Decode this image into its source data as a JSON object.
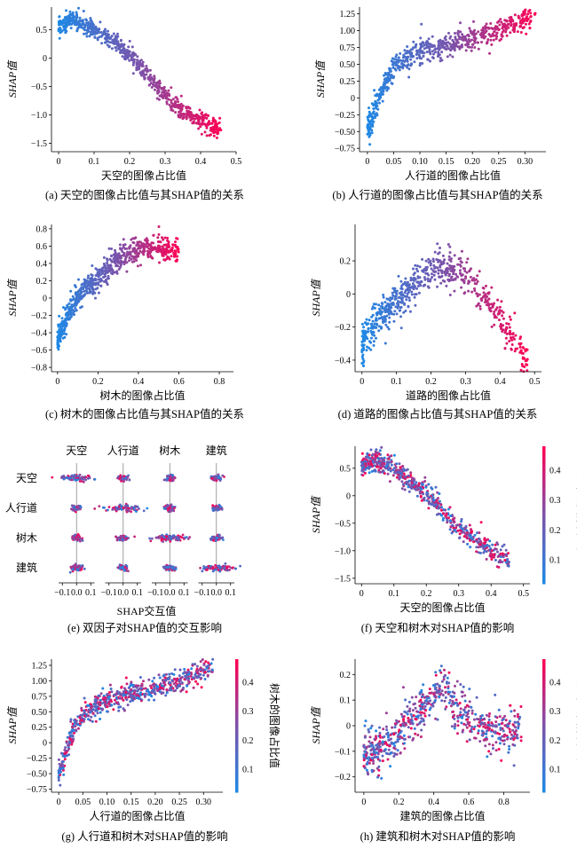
{
  "chart_data": [
    {
      "id": "a",
      "type": "scatter",
      "caption": "(a) 天空的图像占比值与其SHAP值的关系",
      "xlabel": "天空的图像占比值",
      "ylabel": "SHAP值",
      "xlim": [
        -0.02,
        0.5
      ],
      "ylim": [
        -1.65,
        0.9
      ],
      "xticks": [
        0,
        0.1,
        0.2,
        0.3,
        0.4,
        0.5
      ],
      "xticklabels": [
        "0",
        "0.1",
        "0.2",
        "0.3",
        "0.4",
        "0.5"
      ],
      "yticks": [
        0.5,
        0,
        -0.5,
        -1.0,
        -1.5
      ],
      "yticklabels": [
        "0.5",
        "0",
        "−0.5",
        "−1.0",
        "−1.5"
      ],
      "curve": [
        [
          0,
          0.55
        ],
        [
          0.04,
          0.7
        ],
        [
          0.08,
          0.55
        ],
        [
          0.12,
          0.45
        ],
        [
          0.2,
          0.05
        ],
        [
          0.25,
          -0.3
        ],
        [
          0.3,
          -0.65
        ],
        [
          0.35,
          -0.95
        ],
        [
          0.4,
          -1.1
        ],
        [
          0.45,
          -1.25
        ]
      ],
      "x_range": [
        0,
        0.46
      ],
      "spread": 0.09,
      "count": 700,
      "color_by": "x",
      "colorbar": null
    },
    {
      "id": "b",
      "type": "scatter",
      "caption": "(b) 人行道的图像占比值与其SHAP值的关系",
      "xlabel": "人行道的图像占比值",
      "ylabel": "SHAP值",
      "xlim": [
        -0.015,
        0.34
      ],
      "ylim": [
        -0.8,
        1.35
      ],
      "xticks": [
        0,
        0.05,
        0.1,
        0.15,
        0.2,
        0.25,
        0.3
      ],
      "xticklabels": [
        "0",
        "0.05",
        "0.10",
        "0.15",
        "0.20",
        "0.25",
        "0.30"
      ],
      "yticks": [
        1.25,
        1.0,
        0.75,
        0.5,
        0.25,
        0,
        -0.25,
        -0.5,
        -0.75
      ],
      "yticklabels": [
        "1.25",
        "1.00",
        "0.75",
        "0.50",
        "0.25",
        "0",
        "−0.25",
        "−0.50",
        "−0.75"
      ],
      "curve": [
        [
          0,
          -0.5
        ],
        [
          0.01,
          -0.3
        ],
        [
          0.02,
          -0.05
        ],
        [
          0.035,
          0.25
        ],
        [
          0.05,
          0.45
        ],
        [
          0.07,
          0.58
        ],
        [
          0.1,
          0.7
        ],
        [
          0.13,
          0.75
        ],
        [
          0.18,
          0.85
        ],
        [
          0.25,
          1.0
        ],
        [
          0.32,
          1.25
        ]
      ],
      "x_range": [
        0,
        0.32
      ],
      "spread": 0.1,
      "count": 650,
      "color_by": "x",
      "colorbar": null
    },
    {
      "id": "c",
      "type": "scatter",
      "caption": "(c) 树木的图像占比值与其SHAP值的关系",
      "xlabel": "树木的图像占比值",
      "ylabel": "SHAP值",
      "xlim": [
        -0.03,
        0.87
      ],
      "ylim": [
        -0.85,
        0.85
      ],
      "xticks": [
        0,
        0.2,
        0.4,
        0.6,
        0.8
      ],
      "xticklabels": [
        "0",
        "0.2",
        "0.4",
        "0.6",
        "0.8"
      ],
      "yticks": [
        0.8,
        0.6,
        0.4,
        0.2,
        0,
        -0.2,
        -0.4,
        -0.6,
        -0.8
      ],
      "yticklabels": [
        "0.8",
        "0.6",
        "0.4",
        "0.2",
        "0",
        "−0.2",
        "−0.4",
        "−0.6",
        "−0.8"
      ],
      "curve": [
        [
          0,
          -0.5
        ],
        [
          0.05,
          -0.2
        ],
        [
          0.1,
          0
        ],
        [
          0.2,
          0.25
        ],
        [
          0.3,
          0.45
        ],
        [
          0.4,
          0.57
        ],
        [
          0.5,
          0.58
        ],
        [
          0.6,
          0.52
        ],
        [
          0.8,
          0.65
        ]
      ],
      "x_range": [
        0,
        0.6
      ],
      "spread": 0.08,
      "count": 700,
      "color_by": "x",
      "colorbar": null
    },
    {
      "id": "d",
      "type": "scatter",
      "caption": "(d) 道路的图像占比值与其SHAP值的关系",
      "xlabel": "道路的图像占比值",
      "ylabel": "SHAP值",
      "xlim": [
        -0.02,
        0.52
      ],
      "ylim": [
        -0.47,
        0.42
      ],
      "xticks": [
        0,
        0.1,
        0.2,
        0.3,
        0.4,
        0.5
      ],
      "xticklabels": [
        "0",
        "0.1",
        "0.2",
        "0.3",
        "0.4",
        "0.5"
      ],
      "yticks": [
        0.2,
        0,
        -0.2,
        -0.4
      ],
      "yticklabels": [
        "0.2",
        "0",
        "−0.2",
        "−0.4"
      ],
      "curve": [
        [
          0,
          -0.3
        ],
        [
          0.05,
          -0.15
        ],
        [
          0.1,
          -0.05
        ],
        [
          0.15,
          0.05
        ],
        [
          0.2,
          0.14
        ],
        [
          0.25,
          0.15
        ],
        [
          0.3,
          0.12
        ],
        [
          0.35,
          0
        ],
        [
          0.4,
          -0.15
        ],
        [
          0.45,
          -0.3
        ],
        [
          0.48,
          -0.4
        ]
      ],
      "x_range": [
        0,
        0.48
      ],
      "spread": 0.06,
      "count": 650,
      "color_by": "x",
      "colorbar": null
    },
    {
      "id": "e",
      "type": "interaction-grid",
      "caption": "(e) 双因子对SHAP值的交互影响",
      "xlabel": "SHAP交互值",
      "features": [
        "天空",
        "人行道",
        "树木",
        "建筑"
      ],
      "xticklabels": [
        "−0.1",
        "0.0",
        "0.1"
      ]
    },
    {
      "id": "f",
      "type": "scatter",
      "caption": "(f) 天空和树木对SHAP值的影响",
      "xlabel": "天空的图像占比值",
      "ylabel": "SHAP值",
      "xlim": [
        -0.02,
        0.52
      ],
      "ylim": [
        -1.6,
        0.9
      ],
      "xticks": [
        0,
        0.1,
        0.2,
        0.3,
        0.4,
        0.5
      ],
      "xticklabels": [
        "0",
        "0.1",
        "0.2",
        "0.3",
        "0.4",
        "0.5"
      ],
      "yticks": [
        0.5,
        0,
        -0.5,
        -1.0,
        -1.5
      ],
      "yticklabels": [
        "0.5",
        "0",
        "−0.5",
        "−1.0",
        "−1.5"
      ],
      "curve": [
        [
          0,
          0.55
        ],
        [
          0.04,
          0.65
        ],
        [
          0.1,
          0.5
        ],
        [
          0.2,
          0.05
        ],
        [
          0.3,
          -0.6
        ],
        [
          0.4,
          -1.0
        ],
        [
          0.45,
          -1.15
        ]
      ],
      "x_range": [
        0,
        0.46
      ],
      "spread": 0.1,
      "count": 650,
      "color_by": "random",
      "colorbar": {
        "label": "树木的图像占比值",
        "ticks": [
          "0.4",
          "0.3",
          "0.2",
          "0.1"
        ]
      }
    },
    {
      "id": "g",
      "type": "scatter",
      "caption": "(g) 人行道和树木对SHAP值的影响",
      "xlabel": "人行道的图像占比值",
      "ylabel": "SHAP值",
      "xlim": [
        -0.015,
        0.34
      ],
      "ylim": [
        -0.8,
        1.35
      ],
      "xticks": [
        0,
        0.05,
        0.1,
        0.15,
        0.2,
        0.25,
        0.3
      ],
      "xticklabels": [
        "0",
        "0.05",
        "0.10",
        "0.15",
        "0.20",
        "0.25",
        "0.30"
      ],
      "yticks": [
        1.25,
        1.0,
        0.75,
        0.5,
        0.25,
        0,
        -0.25,
        -0.5,
        -0.75
      ],
      "yticklabels": [
        "1.25",
        "1.00",
        "0.75",
        "0.50",
        "0.25",
        "0",
        "−0.25",
        "−0.50",
        "−0.75"
      ],
      "curve": [
        [
          0,
          -0.5
        ],
        [
          0.01,
          -0.3
        ],
        [
          0.02,
          0.0
        ],
        [
          0.035,
          0.3
        ],
        [
          0.05,
          0.45
        ],
        [
          0.08,
          0.6
        ],
        [
          0.12,
          0.72
        ],
        [
          0.18,
          0.85
        ],
        [
          0.25,
          1.0
        ],
        [
          0.32,
          1.25
        ]
      ],
      "x_range": [
        0,
        0.32
      ],
      "spread": 0.1,
      "count": 650,
      "color_by": "random",
      "colorbar": {
        "label": "树木的图像占比值",
        "ticks": [
          "0.4",
          "0.3",
          "0.2",
          "0.1"
        ]
      }
    },
    {
      "id": "h",
      "type": "scatter",
      "caption": "(h) 建筑和树木对SHAP值的影响",
      "xlabel": "建筑的图像占比值",
      "ylabel": "SHAP值",
      "xlim": [
        -0.05,
        0.95
      ],
      "ylim": [
        -0.26,
        0.26
      ],
      "xticks": [
        0,
        0.2,
        0.4,
        0.6,
        0.8
      ],
      "xticklabels": [
        "0",
        "0.2",
        "0.4",
        "0.6",
        "0.8"
      ],
      "yticks": [
        0.2,
        0.1,
        0,
        -0.1,
        -0.2
      ],
      "yticklabels": [
        "0.2",
        "0.1",
        "0",
        "−0.1",
        "−0.2"
      ],
      "curve": [
        [
          0,
          -0.12
        ],
        [
          0.1,
          -0.08
        ],
        [
          0.2,
          -0.03
        ],
        [
          0.3,
          0.05
        ],
        [
          0.4,
          0.12
        ],
        [
          0.45,
          0.15
        ],
        [
          0.55,
          0.05
        ],
        [
          0.7,
          -0.02
        ],
        [
          0.85,
          -0.03
        ]
      ],
      "x_range": [
        0,
        0.9
      ],
      "spread": 0.05,
      "count": 650,
      "color_by": "random",
      "colorbar": {
        "label": "树木的图像占比值",
        "ticks": [
          "0.4",
          "0.3",
          "0.2",
          "0.1"
        ]
      }
    }
  ]
}
